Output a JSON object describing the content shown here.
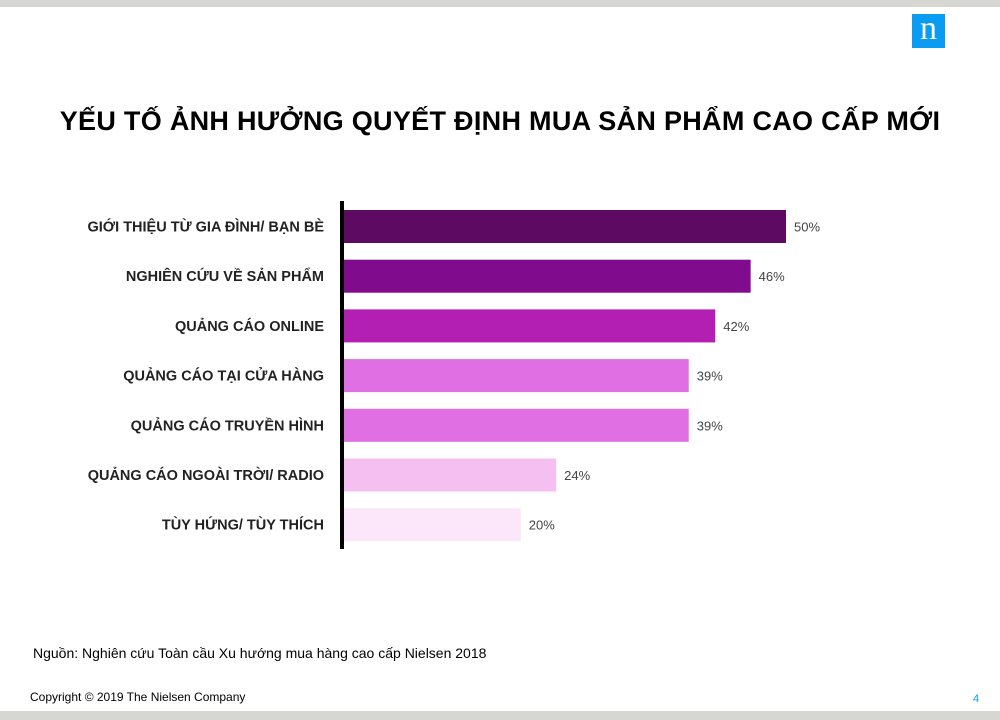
{
  "header": {
    "logo_text": "n",
    "logo_color": "#0a9bf2"
  },
  "chart_data": {
    "type": "bar",
    "orientation": "horizontal",
    "title": "YẾU TỐ ẢNH HƯỞNG QUYẾT ĐỊNH MUA SẢN PHẨM CAO CẤP MỚI",
    "categories": [
      "GIỚI THIỆU TỪ GIA ĐÌNH/ BẠN BÈ",
      "NGHIÊN CỨU VỀ SẢN PHẨM",
      "QUẢNG CÁO ONLINE",
      "QUẢNG CÁO TẠI CỬA HÀNG",
      "QUẢNG CÁO TRUYỀN HÌNH",
      "QUẢNG CÁO NGOÀI TRỜI/ RADIO",
      "TÙY HỨNG/ TÙY THÍCH"
    ],
    "values": [
      50,
      46,
      42,
      39,
      39,
      24,
      20
    ],
    "value_labels": [
      "50%",
      "46%",
      "42%",
      "39%",
      "39%",
      "24%",
      "20%"
    ],
    "colors": [
      "#5c0a62",
      "#810b8d",
      "#b31fb2",
      "#e06fe3",
      "#e06fe3",
      "#f5bff2",
      "#fbe6fa"
    ],
    "xlim": [
      0,
      50
    ],
    "grid": false,
    "legend": "none"
  },
  "footer": {
    "source": "Nguồn: Nghiên cứu Toàn cầu Xu hướng mua hàng cao cấp Nielsen 2018",
    "copyright": "Copyright © 2019  The Nielsen Company",
    "page_number": "4"
  }
}
